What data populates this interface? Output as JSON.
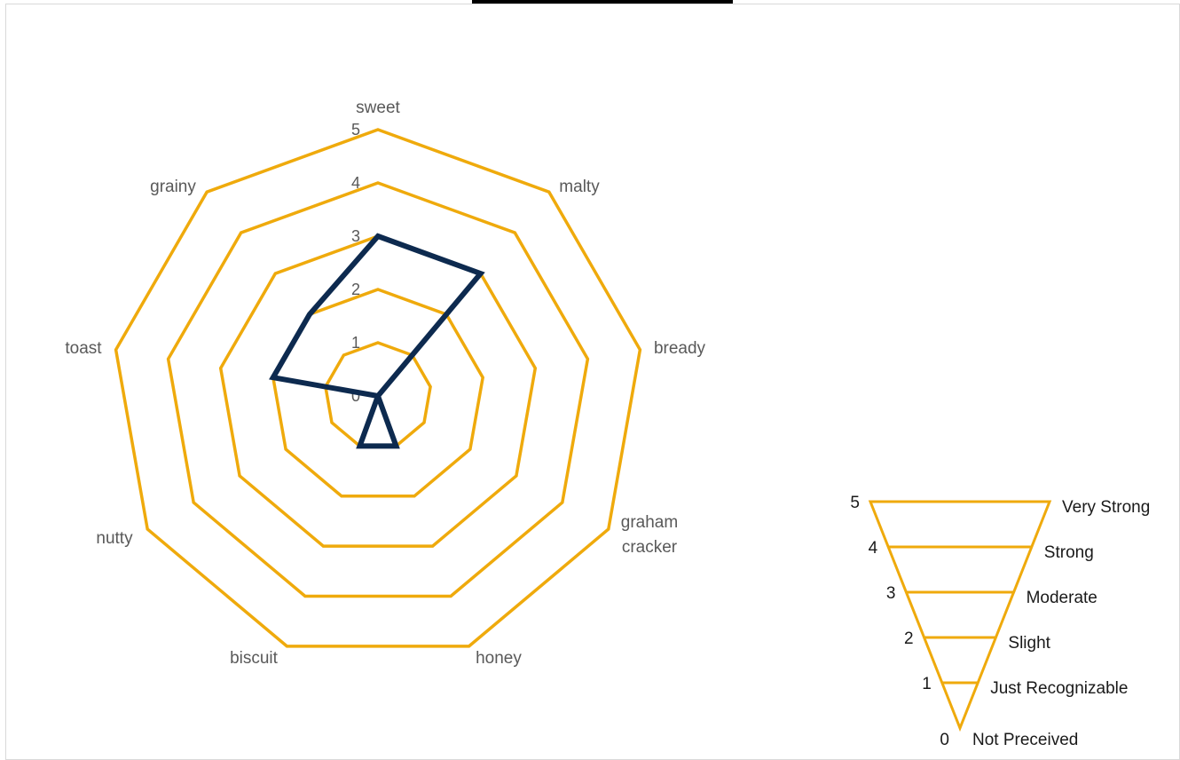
{
  "chart_data": {
    "type": "radar",
    "axes": [
      "sweet",
      "malty",
      "bready",
      "graham cracker",
      "honey",
      "biscuit",
      "nutty",
      "toast",
      "grainy"
    ],
    "axis_label_lines": [
      [
        "sweet"
      ],
      [
        "malty"
      ],
      [
        "bready"
      ],
      [
        "graham",
        "cracker"
      ],
      [
        "honey"
      ],
      [
        "biscuit"
      ],
      [
        "nutty"
      ],
      [
        "toast"
      ],
      [
        "grainy"
      ]
    ],
    "series": [
      {
        "values": [
          3,
          3,
          0,
          0,
          1,
          1,
          0,
          2,
          2
        ],
        "color": "#0d2a4f"
      }
    ],
    "rmin": 0,
    "rmax": 5,
    "ticks": [
      "0",
      "1",
      "2",
      "3",
      "4",
      "5"
    ],
    "grid_color": "#efaa0c"
  },
  "scale_legend": {
    "levels": [
      {
        "value": "5",
        "label": "Very Strong"
      },
      {
        "value": "4",
        "label": "Strong"
      },
      {
        "value": "3",
        "label": "Moderate"
      },
      {
        "value": "2",
        "label": "Slight"
      },
      {
        "value": "1",
        "label": "Just Recognizable"
      },
      {
        "value": "0",
        "label": "Not Preceived"
      }
    ],
    "color": "#efaa0c"
  }
}
